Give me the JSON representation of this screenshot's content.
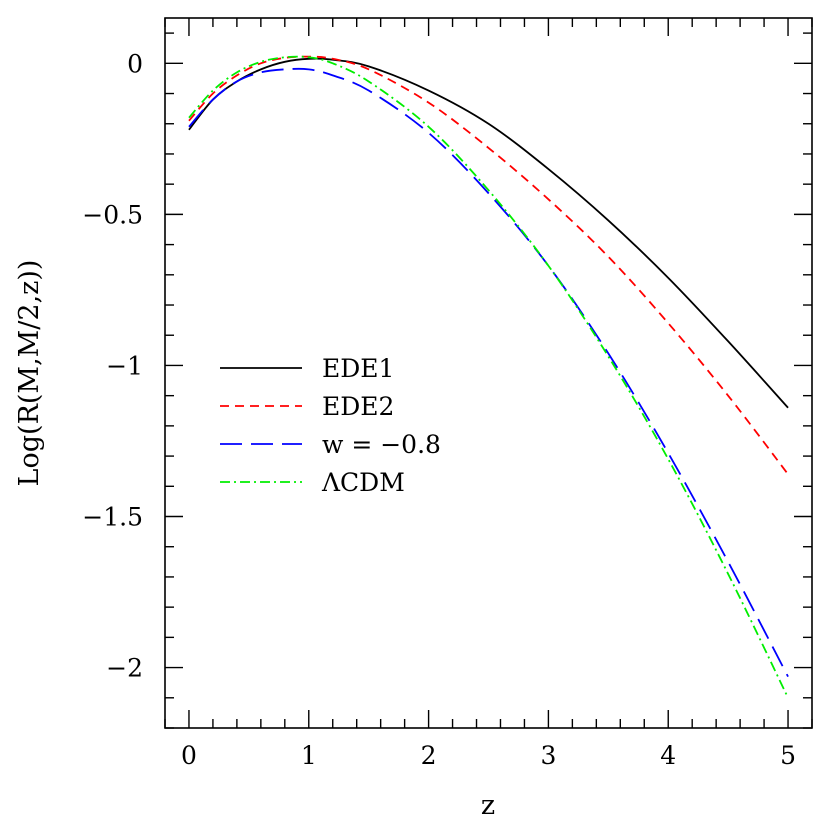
{
  "chart_data": {
    "type": "line",
    "xlabel": "z",
    "ylabel": "Log(R(M,M/2,z))",
    "xlim": [
      -0.2,
      5.2
    ],
    "ylim": [
      -2.2,
      0.15
    ],
    "x_ticks": [
      0,
      1,
      2,
      3,
      4,
      5
    ],
    "x_tick_labels": [
      "0",
      "1",
      "2",
      "3",
      "4",
      "5"
    ],
    "x_minor_step": 0.2,
    "y_ticks": [
      0,
      -0.5,
      -1,
      -1.5,
      -2
    ],
    "y_tick_labels": [
      "0",
      "−0.5",
      "−1",
      "−1.5",
      "−2"
    ],
    "y_minor_step": 0.1,
    "grid": false,
    "legend_position": "center-left",
    "series": [
      {
        "name": "EDE1",
        "color": "#000000",
        "dash": "solid",
        "x": [
          0,
          0.2,
          0.4,
          0.6,
          0.8,
          1.0,
          1.2,
          1.5,
          2.0,
          2.5,
          3.0,
          3.5,
          4.0,
          4.5,
          5.0
        ],
        "y": [
          -0.22,
          -0.12,
          -0.06,
          -0.02,
          0.005,
          0.015,
          0.012,
          -0.01,
          -0.09,
          -0.2,
          -0.35,
          -0.52,
          -0.71,
          -0.92,
          -1.14
        ]
      },
      {
        "name": "EDE2",
        "color": "#ff0000",
        "dash": "short-dash",
        "x": [
          0,
          0.2,
          0.4,
          0.6,
          0.8,
          1.0,
          1.2,
          1.5,
          2.0,
          2.5,
          3.0,
          3.5,
          4.0,
          4.5,
          5.0
        ],
        "y": [
          -0.19,
          -0.1,
          -0.04,
          0.0,
          0.018,
          0.022,
          0.015,
          -0.02,
          -0.13,
          -0.28,
          -0.45,
          -0.64,
          -0.86,
          -1.1,
          -1.36
        ]
      },
      {
        "name": "w = −0.8",
        "color": "#0000ff",
        "dash": "long-dash",
        "x": [
          0,
          0.2,
          0.4,
          0.6,
          0.8,
          1.0,
          1.2,
          1.5,
          2.0,
          2.5,
          3.0,
          3.5,
          4.0,
          4.5,
          5.0
        ],
        "y": [
          -0.21,
          -0.12,
          -0.06,
          -0.03,
          -0.02,
          -0.02,
          -0.04,
          -0.09,
          -0.23,
          -0.43,
          -0.67,
          -0.96,
          -1.29,
          -1.65,
          -2.03
        ]
      },
      {
        "name": "ΛCDM",
        "color": "#00ee00",
        "dash": "dash-dot",
        "x": [
          0,
          0.2,
          0.4,
          0.6,
          0.8,
          1.0,
          1.2,
          1.5,
          2.0,
          2.5,
          3.0,
          3.5,
          4.0,
          4.5,
          5.0
        ],
        "y": [
          -0.18,
          -0.09,
          -0.03,
          0.005,
          0.02,
          0.02,
          0.0,
          -0.06,
          -0.21,
          -0.42,
          -0.67,
          -0.97,
          -1.31,
          -1.69,
          -2.1
        ]
      }
    ]
  }
}
